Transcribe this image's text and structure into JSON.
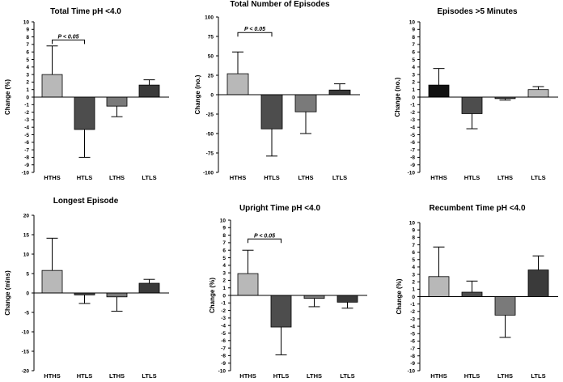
{
  "chart_data": [
    {
      "type": "bar",
      "title": "Total Time pH <4.0",
      "ylabel": "Change (%)",
      "categories": [
        "HTHS",
        "HTLS",
        "LTHS",
        "LTLS"
      ],
      "values": [
        3.0,
        -4.3,
        -1.2,
        1.6
      ],
      "error": [
        3.8,
        3.7,
        1.4,
        0.7
      ],
      "ylim": [
        -10,
        10
      ],
      "yticks": [
        "-10",
        "-9",
        "-8",
        "-7",
        "-6",
        "-5",
        "-4",
        "-3",
        "-2",
        "-1",
        "0",
        "1",
        "2",
        "3",
        "4",
        "5",
        "6",
        "7",
        "8",
        "9",
        "10"
      ],
      "annotation": {
        "text": "P < 0.05",
        "from": "HTHS",
        "to": "HTLS",
        "y": 7.6
      }
    },
    {
      "type": "bar",
      "title": "Total Number of Episodes",
      "ylabel": "Change (no.)",
      "categories": [
        "HTHS",
        "HTLS",
        "LTHS",
        "LTLS"
      ],
      "values": [
        27,
        -44,
        -22,
        6
      ],
      "error": [
        28,
        35,
        28,
        8
      ],
      "ylim": [
        -100,
        100
      ],
      "yticks": [
        "-100",
        "-75",
        "-50",
        "-25",
        "0",
        "25",
        "50",
        "75",
        "100"
      ],
      "annotation": {
        "text": "P < 0.05",
        "from": "HTHS",
        "to": "HTLS",
        "y": 80
      }
    },
    {
      "type": "bar",
      "title": "Episodes >5 Minutes",
      "ylabel": "Change (no.)",
      "categories": [
        "HTHS",
        "HTLS",
        "LTHS",
        "LTLS"
      ],
      "values": [
        1.6,
        -2.2,
        -0.2,
        1.0
      ],
      "error": [
        2.2,
        2.0,
        0.2,
        0.4
      ],
      "ylim": [
        -10,
        10
      ],
      "yticks": [
        "-10",
        "-9",
        "-8",
        "-7",
        "-6",
        "-5",
        "-4",
        "-3",
        "-2",
        "-1",
        "0",
        "1",
        "2",
        "3",
        "4",
        "5",
        "6",
        "7",
        "8",
        "9",
        "10"
      ]
    },
    {
      "type": "bar",
      "title": "Longest Episode",
      "ylabel": "Change (mins)",
      "categories": [
        "HTHS",
        "HTLS",
        "LTHS",
        "LTLS"
      ],
      "values": [
        5.8,
        -0.5,
        -1.0,
        2.5
      ],
      "error": [
        8.3,
        2.2,
        3.7,
        1.0
      ],
      "ylim": [
        -20,
        20
      ],
      "yticks": [
        "-20",
        "-15",
        "-10",
        "-5",
        "0",
        "5",
        "10",
        "15",
        "20"
      ]
    },
    {
      "type": "bar",
      "title": "Upright Time pH <4.0",
      "ylabel": "Change (%)",
      "categories": [
        "HTHS",
        "HTLS",
        "LTHS",
        "LTLS"
      ],
      "values": [
        2.9,
        -4.2,
        -0.4,
        -0.9
      ],
      "error": [
        3.1,
        3.7,
        1.1,
        0.8
      ],
      "ylim": [
        -10,
        10
      ],
      "yticks": [
        "-10",
        "-9",
        "-8",
        "-7",
        "-6",
        "-5",
        "-4",
        "-3",
        "-2",
        "-1",
        "0",
        "1",
        "2",
        "3",
        "4",
        "5",
        "6",
        "7",
        "8",
        "9",
        "10"
      ],
      "annotation": {
        "text": "P < 0.05",
        "from": "HTHS",
        "to": "HTLS",
        "y": 7.5
      }
    },
    {
      "type": "bar",
      "title": "Recumbent Time pH <4.0",
      "ylabel": "Change (%)",
      "categories": [
        "HTHS",
        "HTLS",
        "LTHS",
        "LTLS"
      ],
      "values": [
        2.7,
        0.6,
        -2.5,
        3.6
      ],
      "error": [
        4.0,
        1.5,
        3.0,
        1.9
      ],
      "ylim": [
        -10,
        10
      ],
      "yticks": [
        "-10",
        "-9",
        "-8",
        "-7",
        "-6",
        "-5",
        "-4",
        "-3",
        "-2",
        "-1",
        "0",
        "1",
        "2",
        "3",
        "4",
        "5",
        "6",
        "7",
        "8",
        "9",
        "10"
      ]
    }
  ],
  "colors": {
    "panel1_bars": [
      "#b8b8b8",
      "#4d4d4d",
      "#7a7a7a",
      "#3a3a3a"
    ],
    "panel3_bars": [
      "#111111",
      "#4d4d4d",
      "#5a5a5a",
      "#b8b8b8"
    ],
    "default_bars": [
      "#b8b8b8",
      "#4d4d4d",
      "#7a7a7a",
      "#3a3a3a"
    ]
  }
}
